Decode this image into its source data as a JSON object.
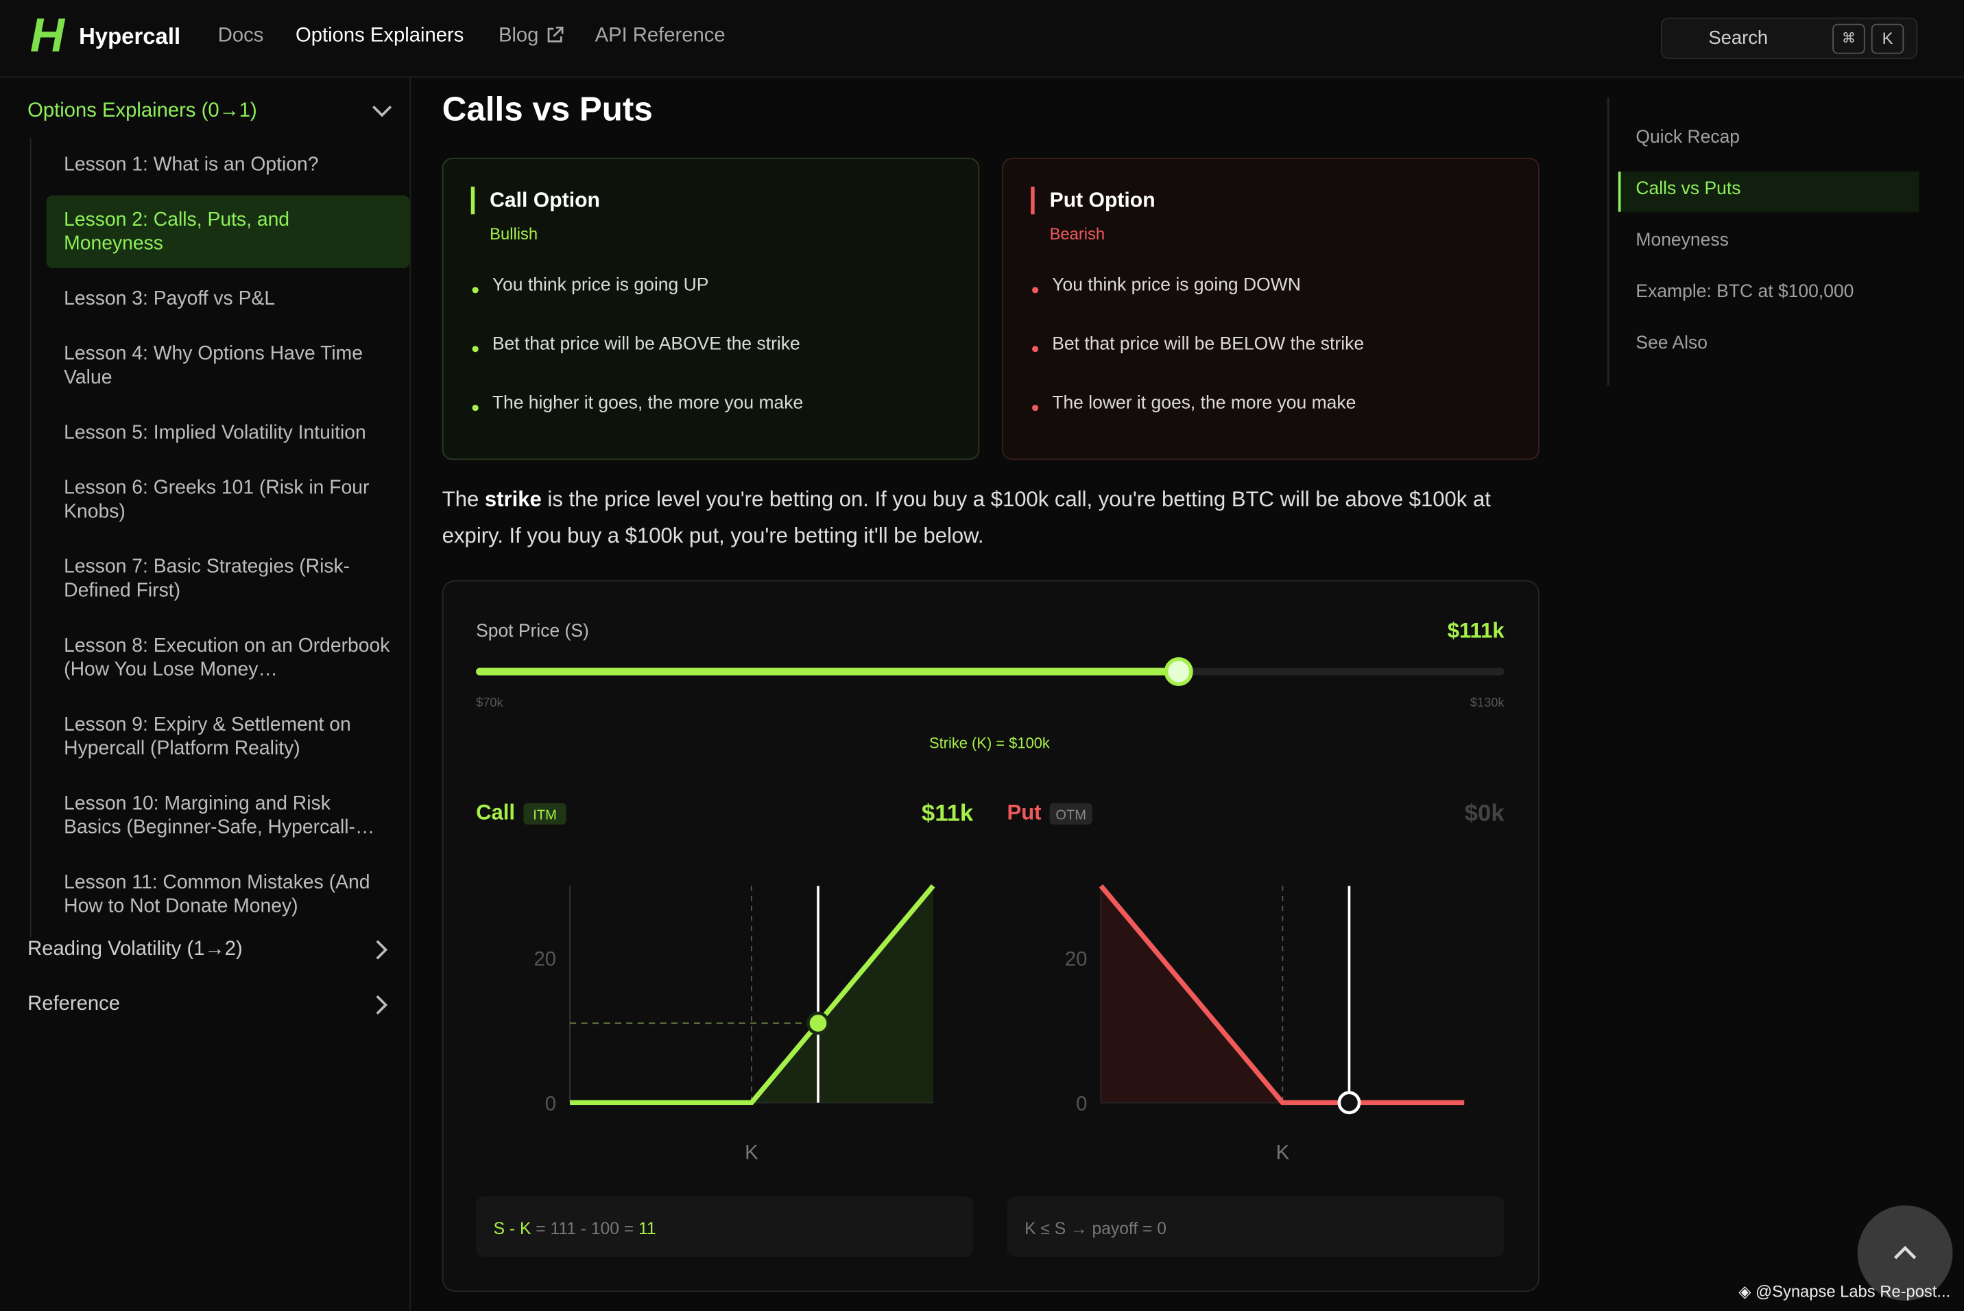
{
  "header": {
    "logo": "H",
    "brand": "Hypercall",
    "nav": [
      "Docs",
      "Options Explainers",
      "Blog",
      "API Reference"
    ],
    "search": "Search",
    "keys": [
      "⌘",
      "K"
    ]
  },
  "sidebar": {
    "section": "Options Explainers (0→1)",
    "lessons": [
      "Lesson 1: What is an Option?",
      "Lesson 2: Calls, Puts, and Moneyness",
      "Lesson 3: Payoff vs P&L",
      "Lesson 4: Why Options Have Time Value",
      "Lesson 5: Implied Volatility Intuition",
      "Lesson 6: Greeks 101 (Risk in Four Knobs)",
      "Lesson 7: Basic Strategies (Risk-Defined First)",
      "Lesson 8: Execution on an Orderbook (How You Lose Money…",
      "Lesson 9: Expiry & Settlement on Hypercall (Platform Reality)",
      "Lesson 10: Margining and Risk Basics (Beginner-Safe, Hypercall-…",
      "Lesson 11: Common Mistakes (And How to Not Donate Money)"
    ],
    "other_sections": [
      "Reading Volatility (1→2)",
      "Reference"
    ]
  },
  "toc": [
    "Quick Recap",
    "Calls vs Puts",
    "Moneyness",
    "Example: BTC at $100,000",
    "See Also"
  ],
  "content": {
    "title": "Calls vs Puts",
    "cards": [
      {
        "title": "Call Option",
        "subtitle": "Bullish",
        "bullets": [
          "You think price is going UP",
          "Bet that price will be ABOVE the strike",
          "The higher it goes, the more you make"
        ]
      },
      {
        "title": "Put Option",
        "subtitle": "Bearish",
        "bullets": [
          "You think price is going DOWN",
          "Bet that price will be BELOW the strike",
          "The lower it goes, the more you make"
        ]
      }
    ],
    "paragraph": [
      "The ",
      "strike",
      " is the price level you're betting on. If you buy a $100k call, you're betting BTC will be above $100k at expiry. If you buy a $100k put, you're betting it'll be below."
    ]
  },
  "widget": {
    "spot_label": "Spot Price (S)",
    "spot": {
      "value": 111,
      "label": "$111k"
    },
    "slider_min": {
      "value": 70,
      "label": "$70k"
    },
    "slider_max": {
      "value": 130,
      "label": "$130k"
    },
    "strike_label": "Strike (K) = $100k",
    "strike": 100,
    "chart": {
      "x": [
        70,
        100,
        130
      ],
      "xlim": [
        70,
        130
      ],
      "ylim": [
        0,
        30
      ],
      "yticks": [
        0,
        20
      ],
      "strike_tick": "K"
    },
    "call": {
      "name": "Call",
      "status": "ITM",
      "payoff": {
        "value": 11,
        "label": "$11k"
      },
      "values": [
        0,
        0,
        30
      ],
      "color": "#a6f04a",
      "formula": [
        "S - K",
        " = 111 - 100 = ",
        "11"
      ]
    },
    "put": {
      "name": "Put",
      "status": "OTM",
      "payoff": {
        "value": 0,
        "label": "$0k"
      },
      "values": [
        30,
        0,
        0
      ],
      "color": "#f05a5a",
      "formula": [
        "K ≤ S → payoff = 0"
      ]
    }
  },
  "watermark": "@Synapse Labs Re-post..."
}
